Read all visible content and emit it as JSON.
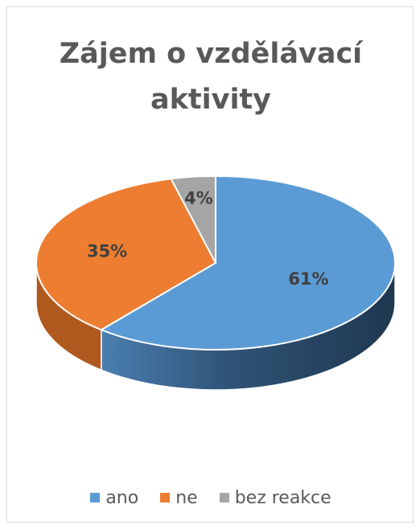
{
  "chart_data": {
    "type": "pie",
    "title": [
      "Zájem o vzdělávací",
      "aktivity"
    ],
    "categories": [
      "ano",
      "ne",
      "bez reakce"
    ],
    "values": [
      61,
      35,
      4
    ],
    "data_labels": [
      "61%",
      "35%",
      "4%"
    ],
    "colors": [
      "#5b9bd5",
      "#ed7d31",
      "#a5a5a5"
    ],
    "side_colors": [
      "#2e4e6b",
      "#b0591f",
      "#7a7a7a"
    ],
    "legend_position": "bottom",
    "style": "3d"
  }
}
